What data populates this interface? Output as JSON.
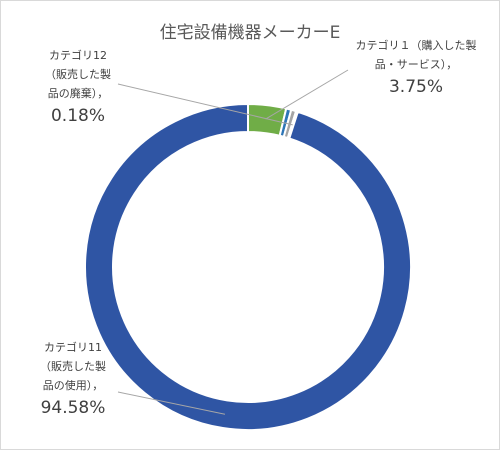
{
  "chart_data": {
    "type": "pie",
    "title": "住宅設備機器メーカーE",
    "donut": true,
    "slices": [
      {
        "name": "カテゴリ1（購入した製品・サービス）",
        "name_lines": [
          "カテゴリ１（購入した製",
          "品・サービス），"
        ],
        "value": 3.75,
        "value_label": "3.75%",
        "color": "#70ad47"
      },
      {
        "name": "other-small-1",
        "value": 0.5,
        "color": "#2e75b6"
      },
      {
        "name": "other-small-2",
        "value": 0.49,
        "color": "#a5a5a5"
      },
      {
        "name": "カテゴリ12（販売した製品の廃棄）",
        "name_lines": [
          "カテゴリ12",
          "（販売した製",
          "品の廃棄），"
        ],
        "value": 0.18,
        "value_label": "0.18%",
        "color": "#4472c4"
      },
      {
        "name": "カテゴリ11（販売した製品の使用）",
        "name_lines": [
          "カテゴリ11",
          "（販売した製",
          "品の使用），"
        ],
        "value": 94.58,
        "value_label": "94.58%",
        "color": "#2f55a4"
      }
    ]
  }
}
